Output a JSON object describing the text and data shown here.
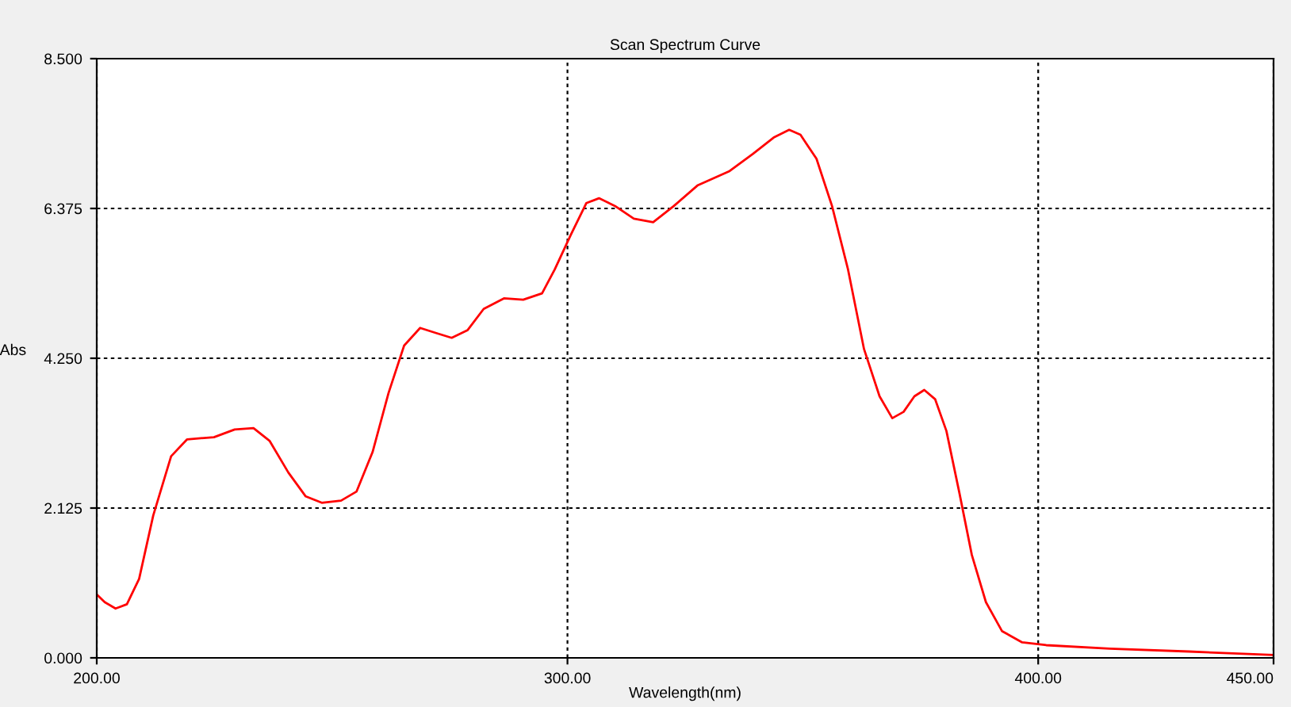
{
  "chart_data": {
    "type": "line",
    "title": "Scan Spectrum Curve",
    "xlabel": "Wavelength(nm)",
    "ylabel": "Abs",
    "x": [
      200,
      201.7,
      204,
      206.4,
      209,
      212,
      215.8,
      219.2,
      224.9,
      229.3,
      233.3,
      236.7,
      240.7,
      244.4,
      247.8,
      251.9,
      255.2,
      258.6,
      262,
      265.3,
      268.7,
      272,
      275.4,
      278.8,
      282.2,
      286.5,
      290.6,
      294.6,
      297.3,
      300.7,
      304,
      306.7,
      310.1,
      314.1,
      318.2,
      322.6,
      327.6,
      334.3,
      339.4,
      343.8,
      347.1,
      349.5,
      352.9,
      356.2,
      359.6,
      363,
      366.3,
      369,
      371.4,
      373.7,
      375.8,
      378.1,
      380.5,
      383.2,
      385.9,
      388.9,
      392.3,
      396.6,
      401.7,
      415.2,
      432,
      450
    ],
    "series": [
      {
        "color": "#ff0000",
        "values": [
          0.9,
          0.79,
          0.7,
          0.76,
          1.12,
          2.02,
          2.86,
          3.1,
          3.13,
          3.24,
          3.26,
          3.08,
          2.63,
          2.29,
          2.2,
          2.23,
          2.36,
          2.92,
          3.76,
          4.43,
          4.68,
          4.61,
          4.54,
          4.65,
          4.95,
          5.1,
          5.08,
          5.17,
          5.51,
          6.0,
          6.45,
          6.52,
          6.41,
          6.23,
          6.18,
          6.41,
          6.7,
          6.9,
          7.15,
          7.38,
          7.49,
          7.42,
          7.08,
          6.41,
          5.51,
          4.38,
          3.71,
          3.4,
          3.49,
          3.71,
          3.8,
          3.67,
          3.22,
          2.36,
          1.46,
          0.79,
          0.38,
          0.22,
          0.18,
          0.13,
          0.09,
          0.04
        ]
      }
    ],
    "xlim": [
      200,
      450
    ],
    "ylim": [
      0,
      8.5
    ],
    "xticks": [
      {
        "value": 200,
        "label": "200.00"
      },
      {
        "value": 300,
        "label": "300.00"
      },
      {
        "value": 400,
        "label": "400.00"
      },
      {
        "value": 450,
        "label": "450.00"
      }
    ],
    "yticks": [
      {
        "value": 0,
        "label": "0.000"
      },
      {
        "value": 2.125,
        "label": "2.125"
      },
      {
        "value": 4.25,
        "label": "4.250"
      },
      {
        "value": 6.375,
        "label": "6.375"
      },
      {
        "value": 8.5,
        "label": "8.500"
      }
    ],
    "grid": true,
    "line_style": "solid",
    "marker": "none"
  }
}
